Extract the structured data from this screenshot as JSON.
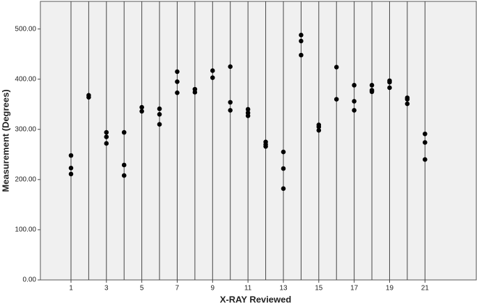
{
  "chart_data": {
    "type": "scatter",
    "x_label": "X-RAY Reviewed",
    "y_label": "Measurement (Degrees)",
    "series": [
      {
        "name": "Measurement",
        "color": "#000000",
        "x": [
          1,
          1,
          1,
          2,
          2,
          3,
          3,
          3,
          4,
          4,
          4,
          5,
          5,
          6,
          6,
          6,
          7,
          7,
          7,
          8,
          8,
          9,
          9,
          10,
          10,
          10,
          11,
          11,
          11,
          12,
          12,
          12,
          13,
          13,
          13,
          14,
          14,
          14,
          15,
          15,
          15,
          16,
          16,
          17,
          17,
          17,
          18,
          18,
          18,
          19,
          19,
          19,
          20,
          20,
          20,
          21,
          21,
          21
        ],
        "y": [
          248,
          223,
          211,
          368,
          364,
          294,
          285,
          272,
          294,
          229,
          208,
          344,
          336,
          341,
          330,
          310,
          415,
          395,
          373,
          380,
          374,
          417,
          403,
          425,
          354,
          338,
          340,
          333,
          327,
          275,
          270,
          266,
          255,
          222,
          182,
          488,
          476,
          448,
          309,
          305,
          298,
          424,
          360,
          388,
          356,
          338,
          388,
          378,
          375,
          397,
          394,
          383,
          363,
          360,
          351,
          291,
          274,
          240
        ]
      }
    ],
    "xlim": [
      -0.73,
      23.9
    ],
    "xticks": [
      1,
      3,
      5,
      7,
      9,
      11,
      13,
      15,
      17,
      19,
      21
    ],
    "xgrid": [
      1,
      2,
      3,
      4,
      5,
      6,
      7,
      8,
      9,
      10,
      11,
      12,
      13,
      14,
      15,
      16,
      17,
      18,
      19,
      20,
      21
    ],
    "ylim": [
      0,
      555
    ],
    "yticks": [
      {
        "value": 0,
        "label": "0.00"
      },
      {
        "value": 100,
        "label": "100.00"
      },
      {
        "value": 200,
        "label": "200.00"
      },
      {
        "value": 300,
        "label": "300.00"
      },
      {
        "value": 400,
        "label": "400.00"
      },
      {
        "value": 500,
        "label": "500.00"
      }
    ]
  }
}
